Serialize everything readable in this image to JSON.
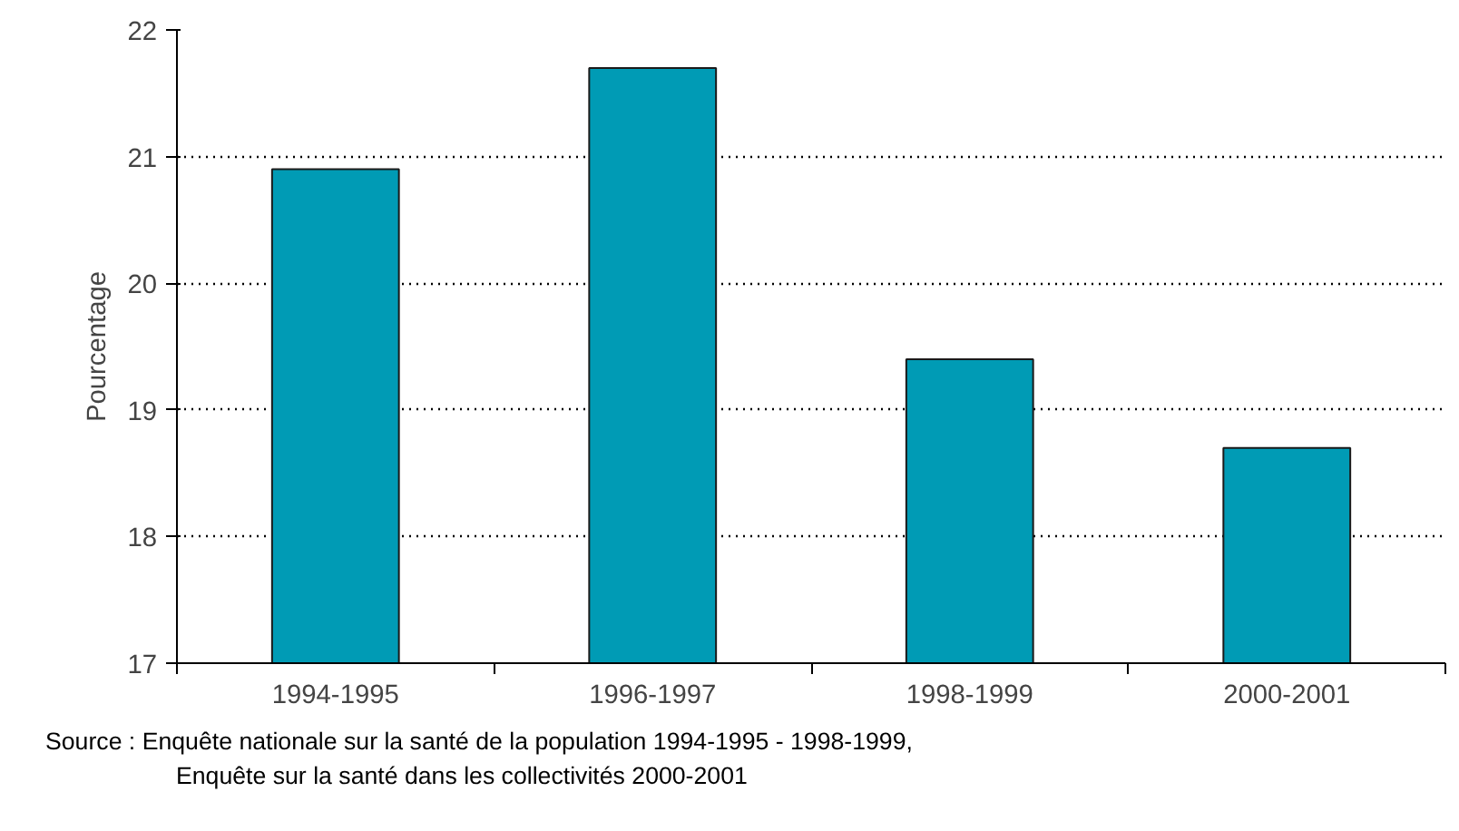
{
  "chart_data": {
    "type": "bar",
    "ylabel": "Pourcentage",
    "categories": [
      "1994-1995",
      "1996-1997",
      "1998-1999",
      "2000-2001"
    ],
    "values": [
      20.9,
      21.7,
      19.4,
      18.7
    ],
    "color": "#009bb5",
    "ylim": [
      17,
      22
    ],
    "yticks": [
      17,
      18,
      19,
      20,
      21,
      22
    ],
    "grid": "y",
    "annotations": [
      "Source : Enquête nationale sur la santé de la population 1994-1995 - 1998-1999,",
      "Enquête sur la santé dans les collectivités 2000-2001"
    ]
  }
}
